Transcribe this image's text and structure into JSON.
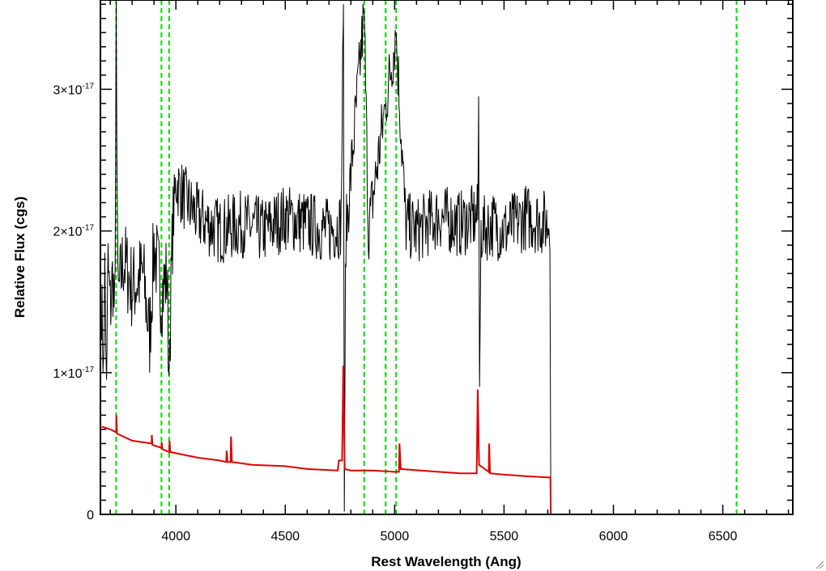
{
  "chart_data": {
    "type": "line",
    "xlabel": "Rest Wavelength (Ang)",
    "ylabel": "Relative Flux (cgs)",
    "xlim": [
      3655,
      6820
    ],
    "ylim": [
      0,
      3.63e-17
    ],
    "x_ticks": [
      4000,
      4500,
      5000,
      5500,
      6000,
      6500
    ],
    "y_ticks": [
      {
        "value": 0,
        "mantissa": "0",
        "exponent": ""
      },
      {
        "value": 1e-17,
        "mantissa": "1×10",
        "exponent": "-17"
      },
      {
        "value": 2e-17,
        "mantissa": "2×10",
        "exponent": "-17"
      },
      {
        "value": 3e-17,
        "mantissa": "3×10",
        "exponent": "-17"
      }
    ],
    "grid": false,
    "colors": {
      "spectrum": "#000000",
      "model": "#e00000",
      "lines": "#00dd00"
    },
    "vertical_lines": [
      3727,
      3934,
      3969,
      4861,
      4959,
      5007,
      6563
    ],
    "series": [
      {
        "color": "#000000",
        "points": [
          [
            3660,
            1.55e-17
          ],
          [
            3667,
            1e-17
          ],
          [
            3675,
            1.7e-17
          ],
          [
            3683,
            9.5e-18
          ],
          [
            3690,
            1.75e-17
          ],
          [
            3700,
            1.45e-17
          ],
          [
            3712,
            1.7e-17
          ],
          [
            3722,
            1.3e-17
          ],
          [
            3727,
            3.62e-17
          ],
          [
            3735,
            1.5e-17
          ],
          [
            3760,
            1.8e-17
          ],
          [
            3800,
            1.6e-17
          ],
          [
            3850,
            1.7e-17
          ],
          [
            3880,
            1.25e-17
          ],
          [
            3900,
            1.9e-17
          ],
          [
            3934,
            1.55e-17
          ],
          [
            3960,
            1.7e-17
          ],
          [
            3968,
            9.8e-18
          ],
          [
            3985,
            2e-17
          ],
          [
            4000,
            2.35e-17
          ],
          [
            4050,
            2.2e-17
          ],
          [
            4100,
            2.1e-17
          ],
          [
            4200,
            2e-17
          ],
          [
            4300,
            2.05e-17
          ],
          [
            4400,
            2e-17
          ],
          [
            4500,
            2.1e-17
          ],
          [
            4600,
            2.05e-17
          ],
          [
            4700,
            2e-17
          ],
          [
            4755,
            2.05e-17
          ],
          [
            4766,
            3.6e-17
          ],
          [
            4770,
            2e-19
          ],
          [
            4776,
            1.95e-17
          ],
          [
            4861,
            3.55e-17
          ],
          [
            4880,
            2e-17
          ],
          [
            4959,
            2.9e-17
          ],
          [
            5007,
            3.4e-17
          ],
          [
            5050,
            2.05e-17
          ],
          [
            5100,
            2e-17
          ],
          [
            5200,
            2.1e-17
          ],
          [
            5300,
            2.05e-17
          ],
          [
            5380,
            2.1e-17
          ],
          [
            5384,
            2.95e-17
          ],
          [
            5388,
            9e-18
          ],
          [
            5395,
            2e-17
          ],
          [
            5450,
            2.05e-17
          ],
          [
            5500,
            2e-17
          ],
          [
            5600,
            2.1e-17
          ],
          [
            5700,
            2.05e-17
          ],
          [
            5712,
            2.1e-17
          ],
          [
            5714,
            0
          ]
        ]
      },
      {
        "color": "#e00000",
        "points": [
          [
            3660,
            6.2e-18
          ],
          [
            3700,
            6e-18
          ],
          [
            3727,
            5.8e-18
          ],
          [
            3728,
            7e-18
          ],
          [
            3731,
            5.7e-18
          ],
          [
            3800,
            5.2e-18
          ],
          [
            3889,
            5e-18
          ],
          [
            3890,
            5.6e-18
          ],
          [
            3893,
            4.9e-18
          ],
          [
            3934,
            4.7e-18
          ],
          [
            3935,
            5.1e-18
          ],
          [
            3938,
            4.6e-18
          ],
          [
            3970,
            4.4e-18
          ],
          [
            3971,
            5.2e-18
          ],
          [
            3974,
            4.4e-18
          ],
          [
            4100,
            4e-18
          ],
          [
            4200,
            3.8e-18
          ],
          [
            4230,
            3.7e-18
          ],
          [
            4232,
            4.5e-18
          ],
          [
            4236,
            3.7e-18
          ],
          [
            4250,
            3.7e-18
          ],
          [
            4252,
            5.5e-18
          ],
          [
            4256,
            3.7e-18
          ],
          [
            4350,
            3.5e-18
          ],
          [
            4500,
            3.4e-18
          ],
          [
            4600,
            3.2e-18
          ],
          [
            4740,
            3.1e-18
          ],
          [
            4745,
            3.8e-18
          ],
          [
            4760,
            3.8e-18
          ],
          [
            4765,
            1.05e-17
          ],
          [
            4772,
            3.2e-18
          ],
          [
            4800,
            3.1e-18
          ],
          [
            4900,
            3.1e-18
          ],
          [
            5000,
            3e-18
          ],
          [
            5020,
            3e-18
          ],
          [
            5022,
            5e-18
          ],
          [
            5028,
            3.2e-18
          ],
          [
            5200,
            3e-18
          ],
          [
            5300,
            2.9e-18
          ],
          [
            5375,
            2.9e-18
          ],
          [
            5380,
            8.8e-18
          ],
          [
            5386,
            3.5e-18
          ],
          [
            5430,
            3e-18
          ],
          [
            5432,
            5e-18
          ],
          [
            5436,
            2.9e-18
          ],
          [
            5500,
            2.8e-18
          ],
          [
            5600,
            2.7e-18
          ],
          [
            5710,
            2.6e-18
          ],
          [
            5712,
            2.6e-18
          ],
          [
            5714,
            0
          ],
          [
            6820,
            0
          ]
        ]
      }
    ]
  }
}
